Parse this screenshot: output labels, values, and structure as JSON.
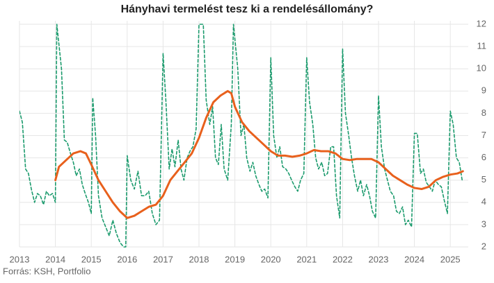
{
  "chart_data": {
    "type": "line",
    "title": "Hányhavi termelést tesz ki a rendelésállomány?",
    "source": "Forrás: KSH, Portfolio",
    "xlim": [
      2013,
      2025.5
    ],
    "xticks": [
      2013,
      2014,
      2015,
      2016,
      2017,
      2018,
      2019,
      2020,
      2021,
      2022,
      2023,
      2024,
      2025
    ],
    "ylim": [
      2,
      12
    ],
    "yticks": [
      2,
      3,
      4,
      5,
      6,
      7,
      8,
      9,
      10,
      11,
      12
    ],
    "grid": true,
    "series": [
      {
        "color": "#1a9a6c",
        "dashed": true,
        "x": [
          2013.0,
          2013.08,
          2013.17,
          2013.25,
          2013.33,
          2013.42,
          2013.5,
          2013.58,
          2013.67,
          2013.75,
          2013.83,
          2013.92,
          2014.0,
          2014.04,
          2014.17,
          2014.25,
          2014.33,
          2014.42,
          2014.5,
          2014.58,
          2014.67,
          2014.75,
          2014.83,
          2014.92,
          2015.0,
          2015.04,
          2015.12,
          2015.2,
          2015.3,
          2015.4,
          2015.5,
          2015.6,
          2015.7,
          2015.8,
          2015.9,
          2015.96,
          2016.0,
          2016.1,
          2016.2,
          2016.3,
          2016.4,
          2016.5,
          2016.6,
          2016.7,
          2016.8,
          2016.9,
          2017.0,
          2017.08,
          2017.17,
          2017.25,
          2017.33,
          2017.42,
          2017.5,
          2017.58,
          2017.67,
          2017.75,
          2017.83,
          2017.92,
          2018.0,
          2018.12,
          2018.2,
          2018.3,
          2018.38,
          2018.46,
          2018.54,
          2018.62,
          2018.7,
          2018.8,
          2018.9,
          2018.96,
          2019.08,
          2019.17,
          2019.25,
          2019.33,
          2019.42,
          2019.5,
          2019.58,
          2019.67,
          2019.75,
          2019.83,
          2019.92,
          2020.0,
          2020.08,
          2020.17,
          2020.25,
          2020.33,
          2020.42,
          2020.5,
          2020.58,
          2020.67,
          2020.75,
          2020.83,
          2020.92,
          2021.0,
          2021.08,
          2021.17,
          2021.25,
          2021.33,
          2021.42,
          2021.5,
          2021.58,
          2021.67,
          2021.75,
          2021.83,
          2021.92,
          2022.0,
          2022.08,
          2022.17,
          2022.25,
          2022.33,
          2022.42,
          2022.5,
          2022.58,
          2022.67,
          2022.75,
          2022.83,
          2022.92,
          2023.0,
          2023.08,
          2023.17,
          2023.25,
          2023.33,
          2023.42,
          2023.5,
          2023.58,
          2023.67,
          2023.75,
          2023.83,
          2023.92,
          2024.0,
          2024.08,
          2024.17,
          2024.25,
          2024.33,
          2024.42,
          2024.5,
          2024.58,
          2024.67,
          2024.75,
          2024.83,
          2024.92,
          2025.0,
          2025.08,
          2025.17,
          2025.25,
          2025.33
        ],
        "values": [
          8.1,
          7.6,
          5.5,
          5.3,
          4.6,
          4.0,
          4.4,
          4.3,
          3.9,
          4.5,
          4.3,
          4.4,
          4.0,
          12.0,
          10.0,
          6.8,
          6.7,
          6.2,
          5.8,
          5.2,
          5.5,
          4.8,
          4.4,
          4.0,
          3.5,
          8.7,
          7.0,
          4.3,
          3.3,
          2.9,
          2.5,
          3.2,
          2.6,
          2.2,
          2.0,
          2.0,
          6.1,
          5.0,
          4.6,
          5.4,
          4.3,
          4.3,
          4.5,
          3.5,
          3.0,
          3.2,
          10.7,
          8.5,
          5.5,
          6.4,
          5.6,
          6.8,
          5.5,
          5.0,
          6.0,
          6.3,
          6.5,
          7.3,
          12.0,
          12.0,
          8.6,
          7.5,
          8.3,
          6.0,
          5.7,
          7.5,
          5.5,
          5.0,
          7.5,
          12.0,
          10.0,
          7.0,
          7.5,
          6.0,
          5.4,
          5.8,
          5.2,
          4.8,
          4.5,
          4.6,
          4.2,
          10.5,
          7.0,
          6.0,
          6.5,
          5.6,
          5.5,
          5.3,
          5.0,
          4.7,
          4.5,
          5.0,
          5.3,
          10.5,
          8.5,
          7.5,
          6.0,
          5.5,
          5.8,
          5.2,
          5.3,
          6.5,
          6.5,
          4.3,
          3.3,
          10.9,
          8.0,
          7.0,
          6.0,
          5.2,
          4.5,
          5.0,
          4.3,
          4.8,
          4.3,
          3.6,
          3.3,
          8.8,
          6.5,
          5.5,
          5.0,
          4.5,
          4.3,
          3.6,
          3.5,
          3.8,
          3.0,
          3.2,
          2.9,
          7.1,
          7.1,
          5.3,
          5.5,
          4.9,
          4.7,
          4.5,
          5.0,
          4.8,
          4.7,
          4.1,
          3.5,
          8.1,
          7.5,
          6.0,
          5.8,
          5.0
        ]
      },
      {
        "color": "#e8601c",
        "dashed": false,
        "x": [
          2014.0,
          2014.1,
          2014.3,
          2014.5,
          2014.7,
          2014.85,
          2015.0,
          2015.2,
          2015.4,
          2015.6,
          2015.8,
          2016.0,
          2016.2,
          2016.4,
          2016.6,
          2016.8,
          2017.0,
          2017.2,
          2017.4,
          2017.6,
          2017.8,
          2018.0,
          2018.2,
          2018.4,
          2018.6,
          2018.8,
          2018.9,
          2019.0,
          2019.2,
          2019.4,
          2019.6,
          2019.8,
          2020.0,
          2020.2,
          2020.4,
          2020.6,
          2020.8,
          2021.0,
          2021.2,
          2021.4,
          2021.6,
          2021.8,
          2022.0,
          2022.2,
          2022.4,
          2022.6,
          2022.8,
          2023.0,
          2023.2,
          2023.4,
          2023.6,
          2023.8,
          2024.0,
          2024.2,
          2024.4,
          2024.6,
          2024.8,
          2025.0,
          2025.2,
          2025.35
        ],
        "values": [
          5.0,
          5.6,
          5.9,
          6.2,
          6.3,
          6.2,
          5.7,
          5.0,
          4.5,
          4.0,
          3.6,
          3.3,
          3.4,
          3.6,
          3.8,
          3.9,
          4.3,
          5.0,
          5.4,
          5.8,
          6.2,
          6.9,
          7.8,
          8.5,
          8.8,
          9.0,
          8.9,
          8.3,
          7.6,
          7.2,
          6.9,
          6.6,
          6.3,
          6.1,
          6.1,
          6.05,
          6.1,
          6.2,
          6.35,
          6.3,
          6.3,
          6.2,
          5.95,
          5.9,
          5.95,
          5.95,
          5.95,
          5.8,
          5.5,
          5.2,
          5.0,
          4.8,
          4.65,
          4.6,
          4.7,
          5.0,
          5.15,
          5.25,
          5.3,
          5.4
        ]
      }
    ]
  }
}
